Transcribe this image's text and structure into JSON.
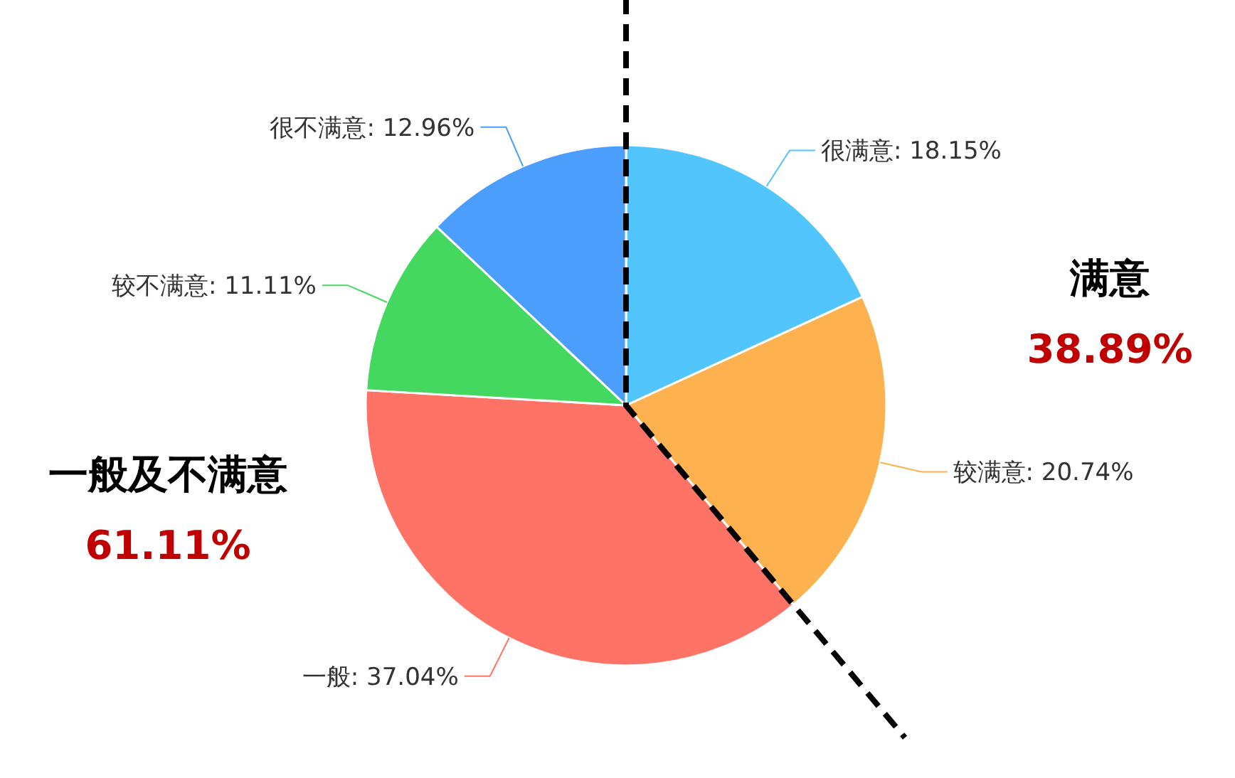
{
  "chart_data": {
    "type": "pie",
    "categories": [
      "很满意",
      "较满意",
      "一般",
      "较不满意",
      "很不满意"
    ],
    "values": [
      18.15,
      20.74,
      37.04,
      11.11,
      12.96
    ],
    "colors": [
      "#52c5fd",
      "#fdb14f",
      "#ff7366",
      "#44d860",
      "#4b9efc"
    ],
    "value_labels": [
      "18.15%",
      "20.74%",
      "37.04%",
      "11.11%",
      "12.96%"
    ],
    "annotations": [
      "满意",
      "38.89%",
      "一般及不满意",
      "61.11%"
    ]
  }
}
